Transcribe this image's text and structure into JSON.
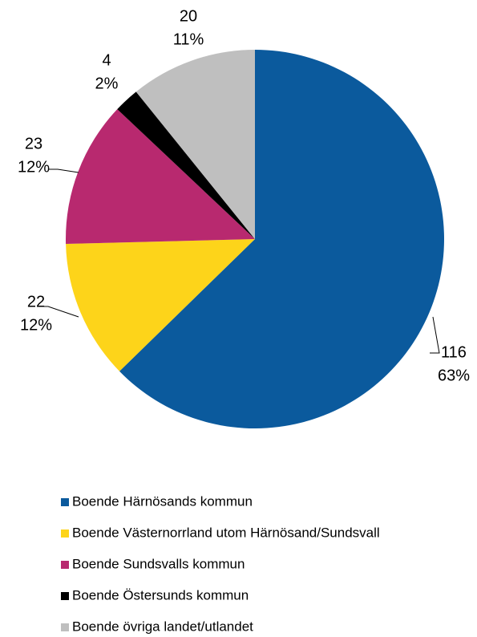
{
  "chart_data": {
    "type": "pie",
    "categories": [
      "Boende Härnösands kommun",
      "Boende Västernorrland utom Härnösand/Sundsvall",
      "Boende Sundsvalls kommun",
      "Boende Östersunds kommun",
      "Boende övriga landet/utlandet"
    ],
    "values": [
      116,
      22,
      23,
      4,
      20
    ],
    "percent_labels": [
      "63%",
      "12%",
      "12%",
      "2%",
      "11%"
    ],
    "colors": [
      "#0b5a9d",
      "#fdd41a",
      "#b8296f",
      "#000000",
      "#bfbfbf"
    ],
    "legend": "bottom"
  }
}
